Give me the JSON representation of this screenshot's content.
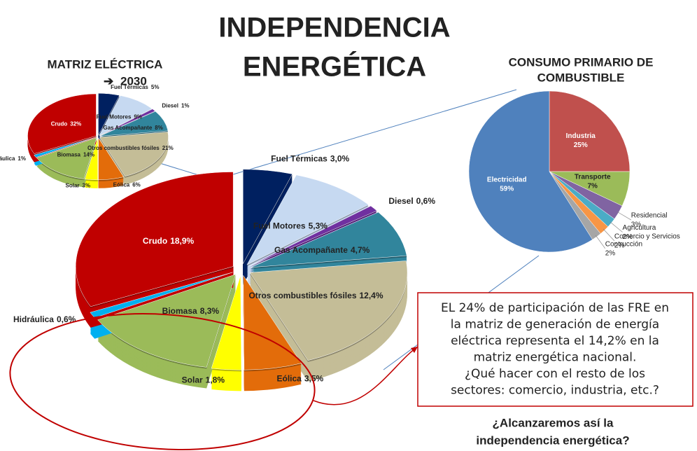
{
  "title": [
    "INDEPENDENCIA",
    "ENERGÉTICA"
  ],
  "chart_data": [
    {
      "type": "pie",
      "title": "MATRIZ ELÉCTRICA",
      "subtitle": "2030",
      "categories": [
        "Fuel Térmicas",
        "Fuel Motores",
        "Diesel",
        "Gas Acompañante",
        "Otros combustibles fósiles",
        "Eólica",
        "Solar",
        "Biomasa",
        "Hidráulica",
        "Crudo"
      ],
      "values": [
        5,
        9,
        1,
        8,
        21,
        6,
        3,
        14,
        1,
        32
      ],
      "value_labels": [
        "5%",
        "9%",
        "1%",
        "8%",
        "21%",
        "6%",
        "3%",
        "14%",
        "1%",
        "32%"
      ],
      "colors": [
        "#002060",
        "#c6d9f1",
        "#7030a0",
        "#31859c",
        "#c4bd97",
        "#e36c0a",
        "#ffff00",
        "#9bbb59",
        "#00b0f0",
        "#c00000"
      ]
    },
    {
      "type": "pie",
      "categories": [
        "Fuel Térmicas",
        "Fuel Motores",
        "Diesel",
        "Gas Acompañante",
        "Otros combustibles fósiles",
        "Eólica",
        "Solar",
        "Biomasa",
        "Hidráulica",
        "Crudo"
      ],
      "values": [
        3.0,
        5.3,
        0.6,
        4.7,
        12.4,
        3.5,
        1.8,
        8.3,
        0.6,
        18.9
      ],
      "value_labels": [
        "3,0%",
        "5,3%",
        "0,6%",
        "4,7%",
        "12,4%",
        "3,5%",
        "1,8%",
        "8,3%",
        "0,6%",
        "18,9%"
      ],
      "colors": [
        "#002060",
        "#c6d9f1",
        "#7030a0",
        "#31859c",
        "#c4bd97",
        "#e36c0a",
        "#ffff00",
        "#9bbb59",
        "#00b0f0",
        "#c00000"
      ]
    },
    {
      "type": "pie",
      "title": "CONSUMO PRIMARIO DE",
      "subtitle": "COMBUSTIBLE",
      "categories": [
        "Industria",
        "Transporte",
        "Residencial",
        "Agricultura",
        "Comercio y Servicios",
        "Contrucción",
        "Electricidad"
      ],
      "values": [
        25,
        7,
        3,
        2,
        2,
        2,
        59
      ],
      "value_labels": [
        "25%",
        "7%",
        "3%",
        "2%",
        "2%",
        "2%",
        "59%"
      ],
      "colors": [
        "#c0504d",
        "#9bbb59",
        "#8064a2",
        "#4bacc6",
        "#f79646",
        "#a6a6a6",
        "#4f81bd"
      ]
    }
  ],
  "note": [
    "EL 24% de participación de las FRE en",
    "la matriz de generación de energía",
    "eléctrica representa el 14,2% en la",
    "matriz energética nacional.",
    "¿Qué hacer con el resto de los",
    "sectores: comercio, industria, etc.?"
  ],
  "question": [
    "¿Alcanzaremos así la",
    "independencia energética?"
  ]
}
